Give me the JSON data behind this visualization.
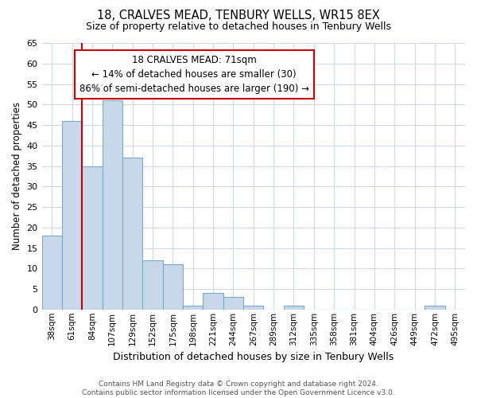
{
  "title": "18, CRALVES MEAD, TENBURY WELLS, WR15 8EX",
  "subtitle": "Size of property relative to detached houses in Tenbury Wells",
  "xlabel": "Distribution of detached houses by size in Tenbury Wells",
  "ylabel": "Number of detached properties",
  "bar_labels": [
    "38sqm",
    "61sqm",
    "84sqm",
    "107sqm",
    "129sqm",
    "152sqm",
    "175sqm",
    "198sqm",
    "221sqm",
    "244sqm",
    "267sqm",
    "289sqm",
    "312sqm",
    "335sqm",
    "358sqm",
    "381sqm",
    "404sqm",
    "426sqm",
    "449sqm",
    "472sqm",
    "495sqm"
  ],
  "bar_values": [
    18,
    46,
    35,
    51,
    37,
    12,
    11,
    1,
    4,
    3,
    1,
    0,
    1,
    0,
    0,
    0,
    0,
    0,
    0,
    1,
    0
  ],
  "bar_color": "#c8d8ea",
  "bar_edge_color": "#7aaac8",
  "reference_line_color": "#cc0000",
  "ylim": [
    0,
    65
  ],
  "yticks": [
    0,
    5,
    10,
    15,
    20,
    25,
    30,
    35,
    40,
    45,
    50,
    55,
    60,
    65
  ],
  "annotation_title": "18 CRALVES MEAD: 71sqm",
  "annotation_line1": "← 14% of detached houses are smaller (30)",
  "annotation_line2": "86% of semi-detached houses are larger (190) →",
  "annotation_box_color": "#ffffff",
  "annotation_box_edge": "#cc0000",
  "footer_line1": "Contains HM Land Registry data © Crown copyright and database right 2024.",
  "footer_line2": "Contains public sector information licensed under the Open Government Licence v3.0.",
  "background_color": "#ffffff",
  "grid_color": "#d0d8e4"
}
